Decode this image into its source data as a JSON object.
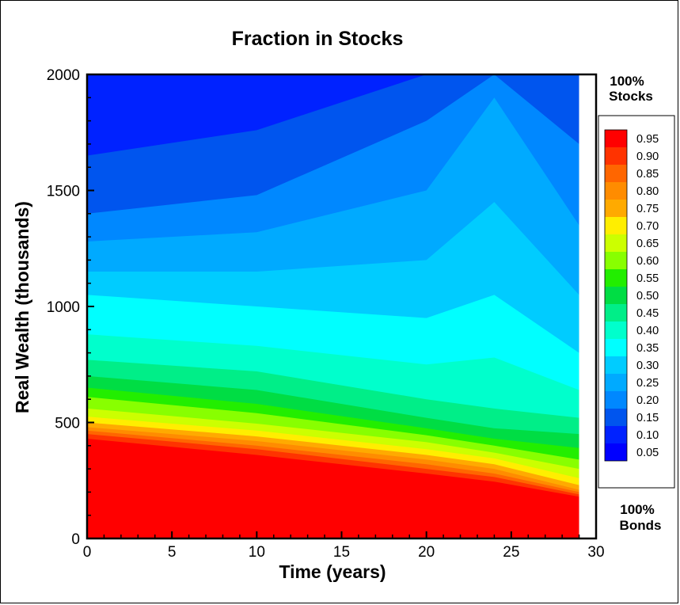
{
  "chart_data": {
    "type": "heatmap",
    "title": "Fraction in Stocks",
    "xlabel": "Time (years)",
    "ylabel": "Real Wealth (thousands)",
    "xlim": [
      0,
      30
    ],
    "ylim": [
      0,
      2000
    ],
    "data_x_max": 29,
    "x_ticks": [
      0,
      5,
      10,
      15,
      20,
      25,
      30
    ],
    "y_ticks": [
      0,
      500,
      1000,
      1500,
      2000
    ],
    "grid": false,
    "legend_position": "right",
    "top_note": [
      "100%",
      "Stocks"
    ],
    "bottom_note": [
      "100%",
      "Bonds"
    ],
    "contour_levels": [
      0.95,
      0.9,
      0.85,
      0.8,
      0.75,
      0.7,
      0.65,
      0.6,
      0.55,
      0.5,
      0.45,
      0.4,
      0.35,
      0.3,
      0.25,
      0.2,
      0.15,
      0.1,
      0.05
    ],
    "level_labels": [
      "0.95",
      "0.90",
      "0.85",
      "0.80",
      "0.75",
      "0.70",
      "0.65",
      "0.60",
      "0.55",
      "0.50",
      "0.45",
      "0.40",
      "0.35",
      "0.30",
      "0.25",
      "0.20",
      "0.15",
      "0.10",
      "0.05"
    ],
    "level_colors": [
      "#ff0000",
      "#ff3300",
      "#ff6600",
      "#ff8c00",
      "#ffaa00",
      "#ffee00",
      "#ccff00",
      "#88ff00",
      "#22ee00",
      "#00dd44",
      "#00ee88",
      "#00ffcc",
      "#00ffff",
      "#00ccff",
      "#00aaff",
      "#0088ff",
      "#0055ee",
      "#0022ff",
      "#0000ff"
    ],
    "region_boundaries": [
      {
        "t": 0,
        "W": [
          0,
          430,
          450,
          465,
          480,
          500,
          525,
          560,
          610,
          650,
          700,
          770,
          880,
          1050,
          1150,
          1280,
          1400,
          1650,
          2000,
          2000
        ]
      },
      {
        "t": 10,
        "W": [
          0,
          360,
          385,
          400,
          420,
          440,
          465,
          495,
          540,
          580,
          640,
          720,
          830,
          1000,
          1150,
          1320,
          1480,
          1760,
          2000,
          2000
        ]
      },
      {
        "t": 20,
        "W": [
          0,
          280,
          300,
          320,
          340,
          360,
          385,
          415,
          445,
          475,
          520,
          600,
          750,
          950,
          1200,
          1500,
          1800,
          2000,
          2000,
          2000
        ]
      },
      {
        "t": 24,
        "W": [
          0,
          245,
          265,
          280,
          300,
          320,
          345,
          370,
          400,
          430,
          475,
          560,
          780,
          1050,
          1450,
          1900,
          2000,
          2000,
          2000,
          2000
        ]
      },
      {
        "t": 29,
        "W": [
          0,
          180,
          190,
          200,
          210,
          230,
          260,
          300,
          340,
          390,
          450,
          520,
          640,
          800,
          1050,
          1350,
          1700,
          2000,
          2000,
          2000
        ]
      }
    ]
  }
}
